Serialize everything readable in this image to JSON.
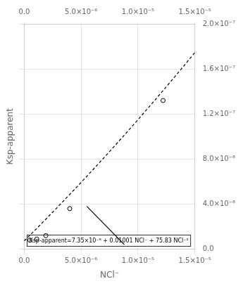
{
  "chart_data": {
    "type": "scatter",
    "xlabel": "NCl⁻",
    "ylabel": "Ksp-apparent",
    "annotations": [
      "Ksp-apparent=7.35×10⁻⁹ + 0.01001 NCl⁻ + 75.83 NCl⁻²"
    ],
    "xlim": [
      0.0,
      1.5e-05
    ],
    "xticks": [
      {
        "value": 0.0,
        "label": "0.0"
      },
      {
        "value": 5e-06,
        "label": "5.0×10⁻⁶"
      },
      {
        "value": 1e-05,
        "label": "1.0×10⁻⁵"
      },
      {
        "value": 1.5e-05,
        "label": "1.5×10⁻⁵"
      }
    ],
    "ylim": [
      0.0,
      2e-07
    ],
    "yticks": [
      {
        "value": 0.0,
        "label": "0.0"
      },
      {
        "value": 4e-08,
        "label": "4.0×10⁻⁸"
      },
      {
        "value": 8e-08,
        "label": "8.0×10⁻⁸"
      },
      {
        "value": 1.2e-07,
        "label": "1.2×10⁻⁷"
      },
      {
        "value": 1.6e-07,
        "label": "1.6×10⁻⁷"
      },
      {
        "value": 2e-07,
        "label": "2.0×10⁻⁷"
      }
    ],
    "grid": true,
    "series": [
      {
        "type": "scatter",
        "color": "#000000",
        "marker": "circle",
        "x": [
          5e-07,
          1.1e-06,
          1.9e-06,
          4e-06,
          1.22e-05
        ],
        "values": [
          8e-09,
          9e-09,
          1.2e-08,
          3.6e-08,
          1.32e-07
        ]
      },
      {
        "type": "line",
        "color": "#000000",
        "line_style": "dashed",
        "x": [
          0.0,
          1e-06,
          2e-06,
          3e-06,
          4e-06,
          5e-06,
          6e-06,
          7e-06,
          8e-06,
          9e-06,
          1e-05,
          1.1e-05,
          1.2e-05,
          1.3e-05,
          1.4e-05,
          1.5e-05
        ],
        "values": [
          7.35e-09,
          1.743583e-08,
          2.767332e-08,
          3.806247e-08,
          4.860328e-08,
          5.929575e-08,
          7.013988e-08,
          8.113567e-08,
          9.228312e-08,
          1.0358223e-07,
          1.15033e-07,
          1.2663543e-07,
          1.3838952e-07,
          1.5029527e-07,
          1.6235268e-07,
          1.7456175e-07
        ]
      },
      {
        "type": "line",
        "color": "#000000",
        "line_style": "solid",
        "x": [
          5.5e-06,
          8.8e-06
        ],
        "values": [
          3.8e-08,
          4e-09
        ]
      }
    ]
  }
}
